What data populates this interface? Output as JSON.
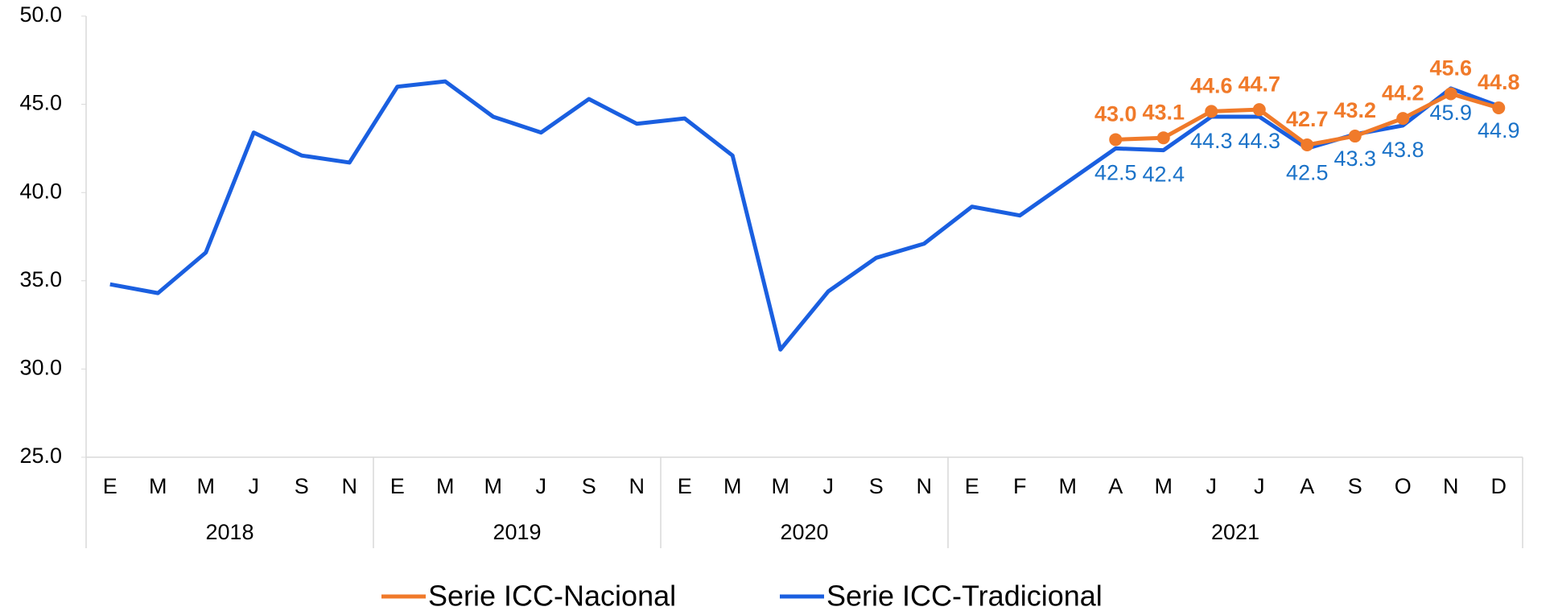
{
  "chart_data": {
    "type": "line",
    "category_groups": [
      {
        "label": "2018",
        "categories": [
          "E",
          "M",
          "M",
          "J",
          "S",
          "N"
        ]
      },
      {
        "label": "2019",
        "categories": [
          "E",
          "M",
          "M",
          "J",
          "S",
          "N"
        ]
      },
      {
        "label": "2020",
        "categories": [
          "E",
          "M",
          "M",
          "J",
          "S",
          "N"
        ]
      },
      {
        "label": "2021",
        "categories": [
          "E",
          "F",
          "M",
          "A",
          "M",
          "J",
          "J",
          "A",
          "S",
          "O",
          "N",
          "D"
        ]
      }
    ],
    "series": [
      {
        "name": "Serie ICC-Nacional",
        "color": "#f07a2a",
        "values": [
          null,
          null,
          null,
          null,
          null,
          null,
          null,
          null,
          null,
          null,
          null,
          null,
          null,
          null,
          null,
          null,
          null,
          null,
          null,
          null,
          null,
          43.0,
          43.1,
          44.6,
          44.7,
          42.7,
          43.2,
          44.2,
          45.6,
          44.8
        ],
        "value_labels": [
          null,
          null,
          null,
          null,
          null,
          null,
          null,
          null,
          null,
          null,
          null,
          null,
          null,
          null,
          null,
          null,
          null,
          null,
          null,
          null,
          null,
          "43.0",
          "43.1",
          "44.6",
          "44.7",
          "42.7",
          "43.2",
          "44.2",
          "45.6",
          "44.8"
        ]
      },
      {
        "name": "Serie ICC-Tradicional",
        "color": "#1a5fe0",
        "values": [
          34.8,
          34.3,
          36.6,
          43.4,
          42.1,
          41.7,
          46.0,
          46.3,
          44.3,
          43.4,
          45.3,
          43.9,
          44.2,
          42.1,
          31.1,
          34.4,
          36.3,
          37.1,
          39.2,
          38.7,
          40.6,
          42.5,
          42.4,
          44.3,
          44.3,
          42.5,
          43.3,
          43.8,
          45.9,
          44.9
        ],
        "value_labels": [
          null,
          null,
          null,
          null,
          null,
          null,
          null,
          null,
          null,
          null,
          null,
          null,
          null,
          null,
          null,
          null,
          null,
          null,
          null,
          null,
          null,
          "42.5",
          "42.4",
          "44.3",
          "44.3",
          "42.5",
          "43.3",
          "43.8",
          "45.9",
          "44.9"
        ]
      }
    ],
    "ylim": [
      25,
      50
    ],
    "yticks": [
      {
        "value": 25,
        "label": "25.0"
      },
      {
        "value": 30,
        "label": "30.0"
      },
      {
        "value": 35,
        "label": "35.0"
      },
      {
        "value": 40,
        "label": "40.0"
      },
      {
        "value": 45,
        "label": "45.0"
      },
      {
        "value": 50,
        "label": "50.0"
      }
    ]
  }
}
